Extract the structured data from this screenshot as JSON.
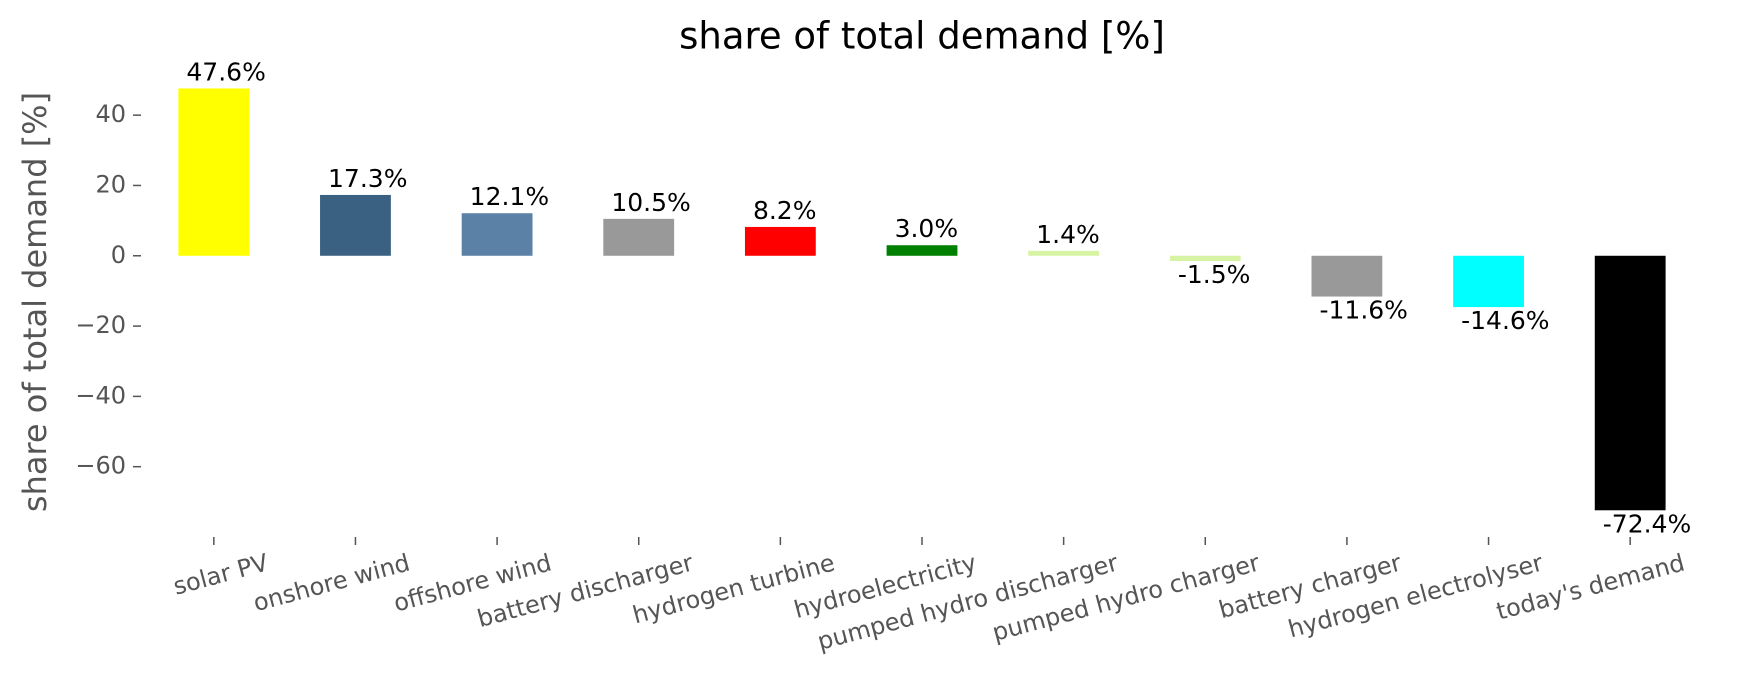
{
  "chart_data": {
    "type": "bar",
    "title": "share of total demand [%]",
    "y_label": "share of total demand [%]",
    "categories": [
      "solar PV",
      "onshore wind",
      "offshore wind",
      "battery discharger",
      "hydrogen turbine",
      "hydroelectricity",
      "pumped hydro discharger",
      "pumped hydro charger",
      "battery charger",
      "hydrogen electrolyser",
      "today's demand"
    ],
    "values": [
      47.6,
      17.3,
      12.1,
      10.5,
      8.2,
      3.0,
      1.4,
      -1.5,
      -11.6,
      -14.6,
      -72.4
    ],
    "value_labels": [
      "47.6%",
      "17.3%",
      "12.1%",
      "10.5%",
      "8.2%",
      "3.0%",
      "1.4%",
      "-1.5%",
      "-11.6%",
      "-14.6%",
      "-72.4%"
    ],
    "colors": [
      "#ffff00",
      "#3a6182",
      "#5b82a6",
      "#999999",
      "#ff0000",
      "#008000",
      "#d7f4a4",
      "#d7f4a4",
      "#999999",
      "#00ffff",
      "#000000"
    ],
    "ylim": [
      -80,
      50
    ],
    "yticks": [
      {
        "value": -60,
        "label": "−60"
      },
      {
        "value": -40,
        "label": "−40"
      },
      {
        "value": -20,
        "label": "−20"
      },
      0,
      20,
      40
    ]
  }
}
